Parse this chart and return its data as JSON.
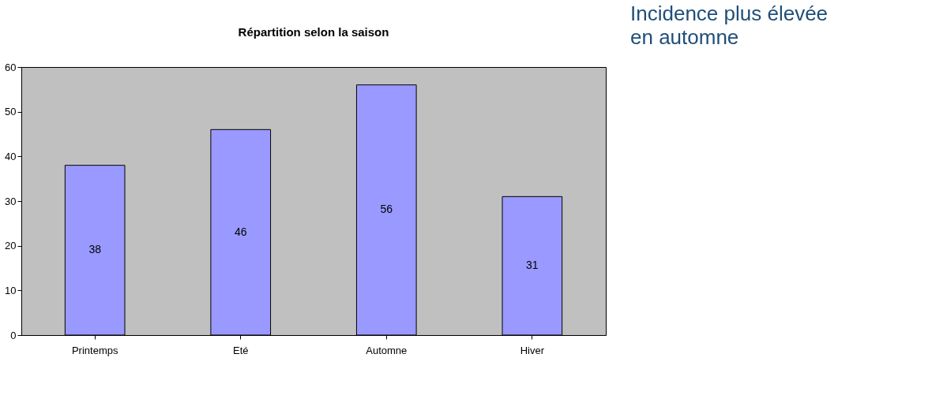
{
  "chart_data": {
    "type": "bar",
    "title": "Répartition selon la saison",
    "categories": [
      "Printemps",
      "Eté",
      "Automne",
      "Hiver"
    ],
    "values": [
      38,
      46,
      56,
      31
    ],
    "color": "#9999ff",
    "ylim": [
      0,
      60
    ],
    "yticks": [
      0,
      10,
      20,
      30,
      40,
      50,
      60
    ],
    "grid": false,
    "data_labels": true,
    "annotations": [
      "Incidence plus élevée\n     en automne"
    ]
  }
}
